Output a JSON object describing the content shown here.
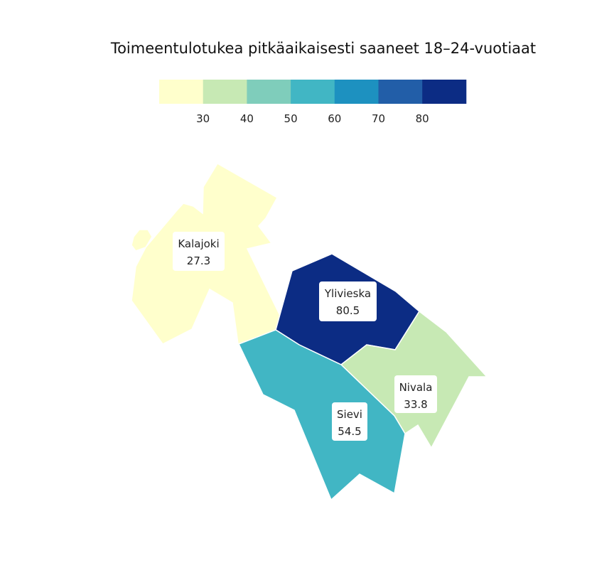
{
  "title": "Toimeentulotukea pitkäaikaisesti saaneet 18–24-vuotiaat",
  "legend": {
    "colors": [
      "#ffffcc",
      "#c7e9b4",
      "#7fcdbb",
      "#41b6c4",
      "#1d91c0",
      "#225ea8",
      "#0c2c84"
    ],
    "breaks": [
      "30",
      "40",
      "50",
      "60",
      "70",
      "80"
    ]
  },
  "regions": [
    {
      "name": "Kalajoki",
      "value": "27.3",
      "color": "#ffffcc"
    },
    {
      "name": "Ylivieska",
      "value": "80.5",
      "color": "#0c2c84"
    },
    {
      "name": "Nivala",
      "value": "33.8",
      "color": "#c7e9b4"
    },
    {
      "name": "Sievi",
      "value": "54.5",
      "color": "#41b6c4"
    }
  ]
}
